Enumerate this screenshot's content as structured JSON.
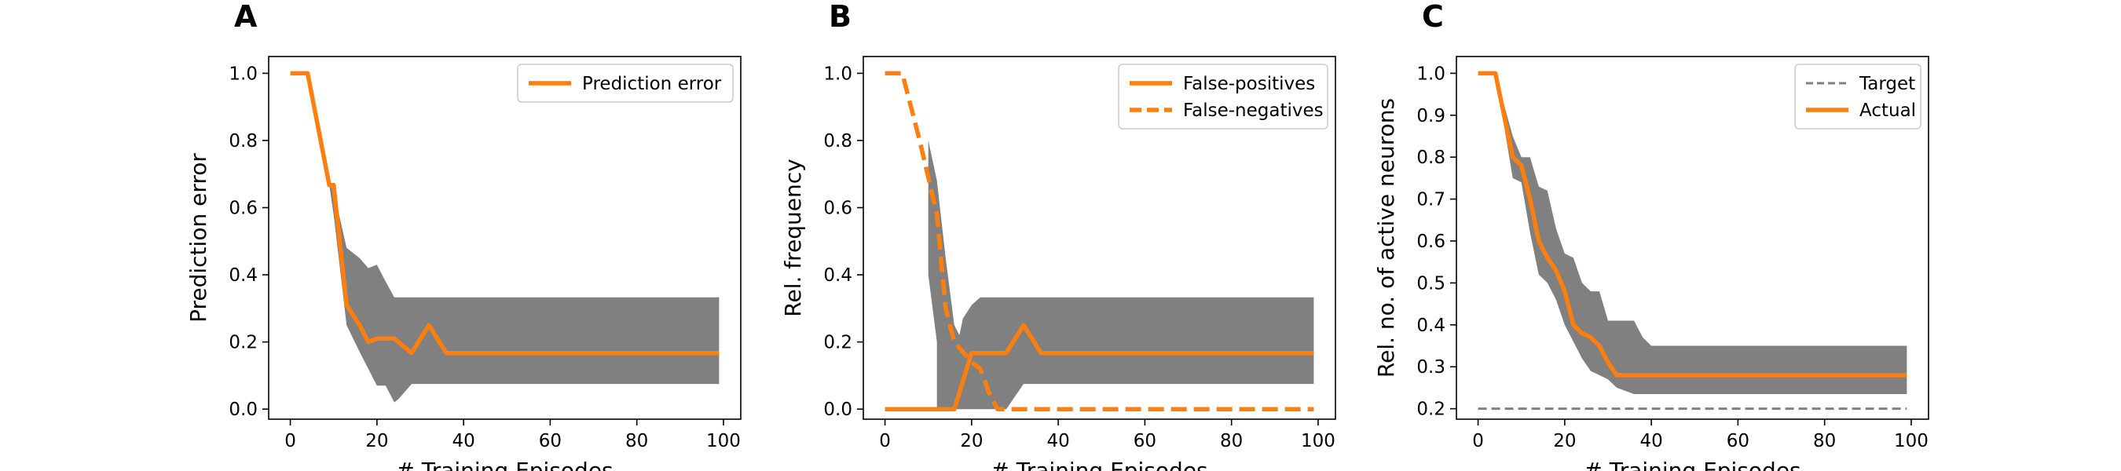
{
  "colors": {
    "series": "#ff7f0e",
    "band": "#808080",
    "target": "#808080",
    "axis": "#000000"
  },
  "chart_data": [
    {
      "panel_letter": "A",
      "type": "line",
      "xlabel": "# Training Episodes",
      "ylabel": "Prediction error",
      "xlim": [
        -5,
        104
      ],
      "ylim": [
        -0.03,
        1.05
      ],
      "xticks": [
        0,
        20,
        40,
        60,
        80,
        100
      ],
      "yticks": [
        0.0,
        0.2,
        0.4,
        0.6,
        0.8,
        1.0
      ],
      "tick_decimals": 1,
      "legend": "top-right",
      "series": [
        {
          "name": "Prediction error",
          "style": "solid",
          "x": [
            0,
            4,
            9,
            10,
            13,
            16,
            18,
            20,
            24,
            28,
            32,
            36,
            40,
            60,
            80,
            99
          ],
          "y": [
            1.0,
            1.0,
            0.667,
            0.667,
            0.31,
            0.25,
            0.2,
            0.21,
            0.21,
            0.167,
            0.25,
            0.167,
            0.167,
            0.167,
            0.167,
            0.167
          ]
        }
      ],
      "bands": [
        {
          "x": [
            9,
            10,
            13,
            16,
            18,
            20,
            22,
            24,
            25,
            28,
            32,
            36,
            40,
            60,
            80,
            99
          ],
          "upper": [
            0.667,
            0.65,
            0.48,
            0.45,
            0.42,
            0.43,
            0.38,
            0.333,
            0.333,
            0.333,
            0.333,
            0.333,
            0.333,
            0.333,
            0.333,
            0.333
          ],
          "lower": [
            0.667,
            0.58,
            0.25,
            0.17,
            0.12,
            0.07,
            0.07,
            0.02,
            0.03,
            0.075,
            0.075,
            0.075,
            0.075,
            0.075,
            0.075,
            0.075
          ]
        }
      ]
    },
    {
      "panel_letter": "B",
      "type": "line",
      "xlabel": "# Training Episodes",
      "ylabel": "Rel. frequency",
      "xlim": [
        -5,
        104
      ],
      "ylim": [
        -0.03,
        1.05
      ],
      "xticks": [
        0,
        20,
        40,
        60,
        80,
        100
      ],
      "yticks": [
        0.0,
        0.2,
        0.4,
        0.6,
        0.8,
        1.0
      ],
      "tick_decimals": 1,
      "legend": "top-right",
      "series": [
        {
          "name": "False-positives",
          "style": "solid",
          "x": [
            0,
            16,
            20,
            24,
            28,
            32,
            36,
            40,
            60,
            80,
            99
          ],
          "y": [
            0.0,
            0.0,
            0.167,
            0.167,
            0.167,
            0.25,
            0.167,
            0.167,
            0.167,
            0.167,
            0.167
          ]
        },
        {
          "name": "False-negatives",
          "style": "dashed",
          "x": [
            0,
            4,
            8,
            12,
            14,
            16,
            18,
            20,
            22,
            24,
            26,
            30,
            40,
            60,
            80,
            99
          ],
          "y": [
            1.0,
            1.0,
            0.8,
            0.58,
            0.3,
            0.2,
            0.17,
            0.14,
            0.12,
            0.05,
            0.0,
            0.0,
            0.0,
            0.0,
            0.0,
            0.0
          ]
        }
      ],
      "bands": [
        {
          "x": [
            12,
            16,
            18,
            20,
            22,
            24,
            28,
            32,
            36,
            40,
            60,
            80,
            99
          ],
          "upper": [
            0.55,
            0.15,
            0.27,
            0.31,
            0.333,
            0.333,
            0.333,
            0.333,
            0.333,
            0.333,
            0.333,
            0.333,
            0.333
          ],
          "lower": [
            0.0,
            0.0,
            0.0,
            0.0,
            0.0,
            0.0,
            0.0,
            0.075,
            0.075,
            0.075,
            0.075,
            0.075,
            0.075
          ]
        },
        {
          "x": [
            10,
            12,
            14,
            16,
            18
          ],
          "upper": [
            0.8,
            0.68,
            0.45,
            0.25,
            0.2
          ],
          "lower": [
            0.4,
            0.2,
            0.08,
            0.02,
            0.0
          ]
        }
      ]
    },
    {
      "panel_letter": "C",
      "type": "line",
      "xlabel": "# Training Episodes",
      "ylabel": "Rel. no. of active neurons",
      "xlim": [
        -5,
        104
      ],
      "ylim": [
        0.175,
        1.04
      ],
      "xticks": [
        0,
        20,
        40,
        60,
        80,
        100
      ],
      "yticks": [
        0.2,
        0.3,
        0.4,
        0.5,
        0.6,
        0.7,
        0.8,
        0.9,
        1.0
      ],
      "tick_decimals": 1,
      "legend": "top-right",
      "series": [
        {
          "name": "Target",
          "style": "dashed-thin",
          "x": [
            0,
            99
          ],
          "y": [
            0.2,
            0.2
          ]
        },
        {
          "name": "Actual",
          "style": "solid",
          "x": [
            0,
            4,
            8,
            10,
            12,
            14,
            16,
            18,
            20,
            22,
            24,
            26,
            28,
            30,
            32,
            36,
            40,
            60,
            80,
            99
          ],
          "y": [
            1.0,
            1.0,
            0.8,
            0.78,
            0.7,
            0.6,
            0.56,
            0.53,
            0.48,
            0.4,
            0.38,
            0.37,
            0.35,
            0.31,
            0.28,
            0.28,
            0.28,
            0.28,
            0.28,
            0.28
          ]
        }
      ],
      "bands": [
        {
          "x": [
            4,
            8,
            10,
            12,
            14,
            16,
            18,
            20,
            22,
            24,
            26,
            28,
            30,
            32,
            36,
            38,
            40,
            60,
            80,
            99
          ],
          "upper": [
            1.0,
            0.85,
            0.8,
            0.8,
            0.73,
            0.72,
            0.63,
            0.57,
            0.56,
            0.5,
            0.48,
            0.48,
            0.41,
            0.41,
            0.41,
            0.37,
            0.35,
            0.35,
            0.35,
            0.35
          ],
          "lower": [
            1.0,
            0.75,
            0.74,
            0.62,
            0.52,
            0.5,
            0.46,
            0.4,
            0.36,
            0.32,
            0.29,
            0.28,
            0.27,
            0.25,
            0.235,
            0.235,
            0.235,
            0.235,
            0.235,
            0.235
          ]
        }
      ]
    }
  ]
}
